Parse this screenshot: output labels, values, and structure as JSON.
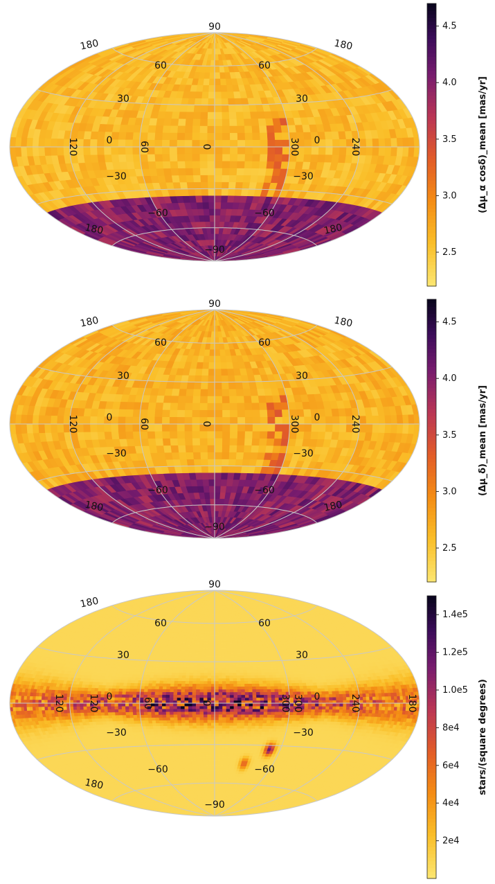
{
  "chart_data": [
    {
      "type": "heatmap",
      "projection": "Aitoff/Hammer all-sky",
      "colormap": "inferno_r",
      "colorbar_label": "(Δμ_α cosδ)_mean [mas/yr]",
      "colorbar_range": [
        2.2,
        4.7
      ],
      "colorbar_ticks": [
        "2.5",
        "3.0",
        "3.5",
        "4.0",
        "4.5"
      ],
      "colorbar_tick_values": [
        2.5,
        3.0,
        3.5,
        4.0,
        4.5
      ],
      "grid": true,
      "longitude_labels": [
        "120",
        "60",
        "0",
        "300",
        "240"
      ],
      "latitude_labels": [
        "90",
        "60",
        "30",
        "0",
        "−30",
        "−60",
        "−90"
      ],
      "edge_labels": [
        "180",
        "180",
        "180",
        "180"
      ],
      "pattern": "north-uniform-low / south-band-high",
      "north_mean": 2.6,
      "south_mean": 4.0,
      "boundary_lat": -37
    },
    {
      "type": "heatmap",
      "projection": "Aitoff/Hammer all-sky",
      "colormap": "inferno_r",
      "colorbar_label": "(Δμ_δ)_mean [mas/yr]",
      "colorbar_range": [
        2.2,
        4.7
      ],
      "colorbar_ticks": [
        "2.5",
        "3.0",
        "3.5",
        "4.0",
        "4.5"
      ],
      "colorbar_tick_values": [
        2.5,
        3.0,
        3.5,
        4.0,
        4.5
      ],
      "grid": true,
      "longitude_labels": [
        "120",
        "60",
        "0",
        "300",
        "240"
      ],
      "latitude_labels": [
        "90",
        "60",
        "30",
        "0",
        "−30",
        "−60",
        "−90"
      ],
      "edge_labels": [
        "180",
        "180",
        "180",
        "180"
      ],
      "pattern": "north-uniform-low / south-band-high",
      "north_mean": 2.65,
      "south_mean": 4.0,
      "boundary_lat": -37
    },
    {
      "type": "heatmap",
      "projection": "Aitoff/Hammer all-sky",
      "colormap": "inferno_r",
      "colorbar_label": "stars/(square degrees)",
      "colorbar_range": [
        0,
        150000
      ],
      "colorbar_ticks": [
        "2e4",
        "4e4",
        "6e4",
        "8e4",
        "1.0e5",
        "1.2e5",
        "1.4e5"
      ],
      "colorbar_tick_values": [
        20000,
        40000,
        60000,
        80000,
        100000,
        120000,
        140000
      ],
      "grid": true,
      "longitude_labels": [
        "120",
        "120",
        "60",
        "0",
        "300",
        "300",
        "240",
        "180"
      ],
      "latitude_labels": [
        "90",
        "60",
        "30",
        "0",
        "−30",
        "−60",
        "−90"
      ],
      "edge_labels": [
        "180",
        "180"
      ],
      "pattern": "galactic-plane density band",
      "background_value": 8000,
      "plane_peak": 140000,
      "clouds": [
        {
          "lon": -50,
          "lat": -33,
          "value": 110000
        },
        {
          "lon": -30,
          "lat": -44,
          "value": 60000
        }
      ]
    }
  ]
}
